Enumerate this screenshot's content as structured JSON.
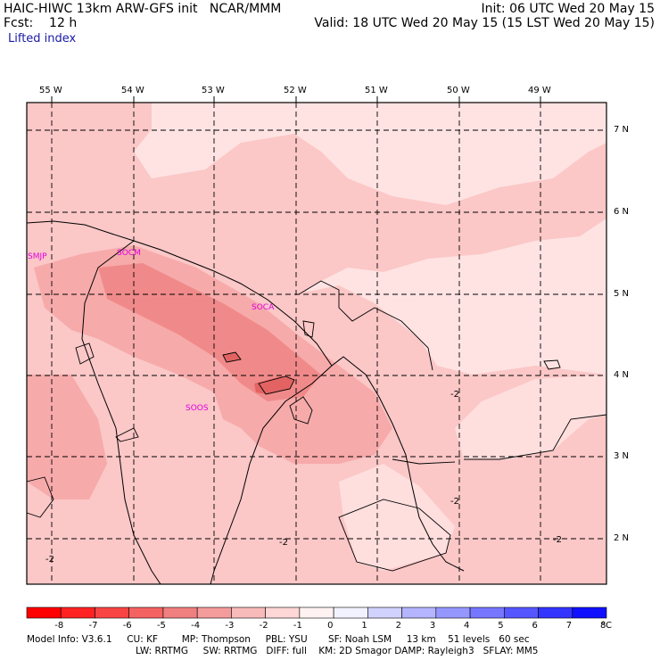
{
  "header": {
    "left_line1": "HAIC-HIWC 13km ARW-GFS init   NCAR/MMM",
    "left_line2": "Fcst:    12 h",
    "right_line1": "Init: 06 UTC Wed 20 May 15",
    "right_line2": "Valid: 18 UTC Wed 20 May 15 (15 LST Wed 20 May 15)",
    "field_name": "Lifted index"
  },
  "map": {
    "lon_labels": [
      "55 W",
      "54 W",
      "53 W",
      "52 W",
      "51 W",
      "50 W",
      "49 W"
    ],
    "lat_labels": [
      "7 N",
      "6 N",
      "5 N",
      "4 N",
      "3 N",
      "2 N"
    ],
    "stations": [
      "SMJP",
      "SOCM",
      "SOCA",
      "SOOS"
    ],
    "contour_labels": [
      "-2",
      "-2",
      "-2",
      "-2",
      "-2"
    ],
    "colors": {
      "level_minus1": "#ffe3e3",
      "level_minus2": "#fbc7c7",
      "level_minus3": "#f7aaaa",
      "level_minus4": "#f08a8a",
      "coast": "#000000",
      "grid": "#000000"
    }
  },
  "colorbar": {
    "labels": [
      "-8",
      "-7",
      "-6",
      "-5",
      "-4",
      "-3",
      "-2",
      "-1",
      "0",
      "1",
      "2",
      "3",
      "4",
      "5",
      "6",
      "7",
      "8"
    ],
    "unit": "°C",
    "colors": [
      "#ff0000",
      "#ff2222",
      "#f94444",
      "#f56262",
      "#f07f7f",
      "#f49c9c",
      "#f9baba",
      "#fdd6d6",
      "#fff2f2",
      "#f2f2ff",
      "#d2d2ff",
      "#b4b4ff",
      "#9696ff",
      "#7676ff",
      "#5656ff",
      "#3434ff",
      "#1010ff"
    ]
  },
  "footer": {
    "line1": "Model Info: V3.6.1     CU: KF        MP: Thompson     PBL: YSU       SF: Noah LSM     13 km    51 levels   60 sec",
    "line2": "LW: RRTMG     SW: RRTMG   DIFF: full    KM: 2D Smagor DAMP: Rayleigh3   SFLAY: MM5"
  }
}
